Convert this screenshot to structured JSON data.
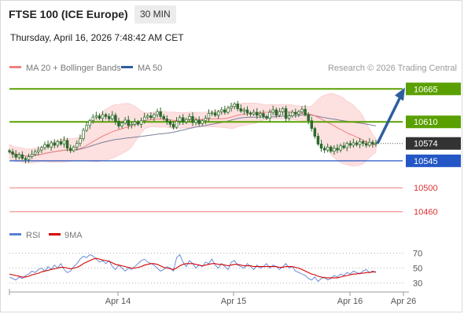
{
  "header": {
    "instrument": "FTSE 100 (ICE Europe)",
    "interval": "30 MIN",
    "datetime": "Thursday, April 16, 2026 7:48:42 AM CET",
    "credit": "Research © 2026 Trading Central"
  },
  "colors": {
    "resistance": "#5aa000",
    "support": "#2457c5",
    "target_line": "#f07a7a",
    "price_badge": "#333333",
    "bollinger_fill": "#fde0e0",
    "ma20": "#f08080",
    "ma50": "#7a7f9a",
    "arrow": "#2e5e9e",
    "candle": "#2b6a2b",
    "rsi": "#5b7fd6",
    "rsi_ma": "#d40000"
  },
  "chart_data": [
    {
      "type": "candlestick",
      "legend": [
        "MA 20 + Bollinger Bands",
        "MA 50"
      ],
      "legend_position": "top-left",
      "ylim": [
        10440,
        10685
      ],
      "x_ticks": [
        "Apr 14",
        "Apr 15",
        "Apr 16",
        "Apr 26"
      ],
      "levels": [
        {
          "value": 10665,
          "label": "10665",
          "kind": "resistance"
        },
        {
          "value": 10610,
          "label": "10610",
          "kind": "resistance"
        },
        {
          "value": 10574,
          "label": "10574",
          "kind": "last"
        },
        {
          "value": 10545,
          "label": "10545",
          "kind": "support"
        },
        {
          "value": 10500,
          "label": "10500",
          "kind": "target"
        },
        {
          "value": 10460,
          "label": "10460",
          "kind": "target"
        }
      ],
      "close_series": [
        10560,
        10556,
        10551,
        10555,
        10549,
        10547,
        10552,
        10556,
        10560,
        10563,
        10567,
        10572,
        10568,
        10575,
        10571,
        10577,
        10573,
        10579,
        10566,
        10562,
        10568,
        10574,
        10582,
        10596,
        10604,
        10612,
        10618,
        10620,
        10616,
        10622,
        10619,
        10615,
        10621,
        10611,
        10603,
        10608,
        10613,
        10604,
        10606,
        10610,
        10606,
        10612,
        10618,
        10620,
        10617,
        10622,
        10627,
        10619,
        10615,
        10611,
        10606,
        10601,
        10611,
        10617,
        10610,
        10614,
        10619,
        10609,
        10613,
        10607,
        10612,
        10616,
        10624,
        10625,
        10621,
        10627,
        10630,
        10626,
        10633,
        10636,
        10640,
        10632,
        10628,
        10630,
        10625,
        10623,
        10626,
        10621,
        10624,
        10619,
        10616,
        10626,
        10630,
        10621,
        10627,
        10632,
        10616,
        10620,
        10626,
        10623,
        10627,
        10631,
        10622,
        10612,
        10599,
        10586,
        10573,
        10566,
        10563,
        10568,
        10561,
        10566,
        10563,
        10570,
        10567,
        10574,
        10571,
        10575,
        10572,
        10577,
        10574,
        10571,
        10576,
        10573,
        10574
      ],
      "arrow": {
        "from": 10574,
        "to": 10662
      }
    },
    {
      "type": "line",
      "legend": [
        "RSI",
        "9MA"
      ],
      "legend_position": "top-left",
      "ylim": [
        20,
        80
      ],
      "y_ticks": [
        70,
        50,
        30
      ],
      "rsi": [
        38,
        36,
        34,
        38,
        36,
        40,
        42,
        46,
        44,
        48,
        50,
        46,
        52,
        48,
        54,
        50,
        56,
        48,
        44,
        46,
        52,
        56,
        62,
        66,
        64,
        68,
        66,
        62,
        58,
        60,
        56,
        60,
        52,
        48,
        54,
        50,
        46,
        50,
        48,
        52,
        56,
        60,
        62,
        58,
        56,
        54,
        50,
        46,
        48,
        52,
        50,
        46,
        64,
        68,
        58,
        52,
        60,
        56,
        50,
        54,
        52,
        58,
        56,
        62,
        54,
        50,
        56,
        52,
        48,
        58,
        60,
        54,
        52,
        50,
        56,
        52,
        48,
        54,
        50,
        52,
        56,
        50,
        54,
        52,
        48,
        52,
        56,
        50,
        52,
        46,
        44,
        42,
        40,
        36,
        34,
        38,
        32,
        36,
        38,
        34,
        36,
        40,
        38,
        42,
        40,
        44,
        42,
        46,
        44,
        42,
        46,
        48,
        44,
        46,
        44
      ],
      "rsi_ma": [
        42,
        41,
        40,
        39,
        38,
        38,
        39,
        41,
        42,
        43,
        45,
        46,
        47,
        48,
        49,
        50,
        51,
        51,
        50,
        49,
        50,
        51,
        53,
        56,
        58,
        60,
        62,
        63,
        62,
        61,
        60,
        59,
        57,
        55,
        54,
        53,
        52,
        51,
        50,
        50,
        51,
        52,
        54,
        55,
        56,
        56,
        55,
        53,
        51,
        50,
        49,
        48,
        50,
        53,
        55,
        56,
        56,
        56,
        55,
        54,
        53,
        54,
        55,
        56,
        56,
        55,
        55,
        54,
        53,
        54,
        55,
        55,
        54,
        53,
        53,
        53,
        52,
        52,
        52,
        52,
        52,
        52,
        52,
        52,
        51,
        51,
        52,
        52,
        52,
        51,
        50,
        48,
        46,
        44,
        42,
        41,
        39,
        38,
        37,
        37,
        37,
        37,
        37,
        38,
        39,
        40,
        41,
        42,
        42,
        43,
        43,
        44,
        44,
        45,
        45
      ]
    }
  ]
}
